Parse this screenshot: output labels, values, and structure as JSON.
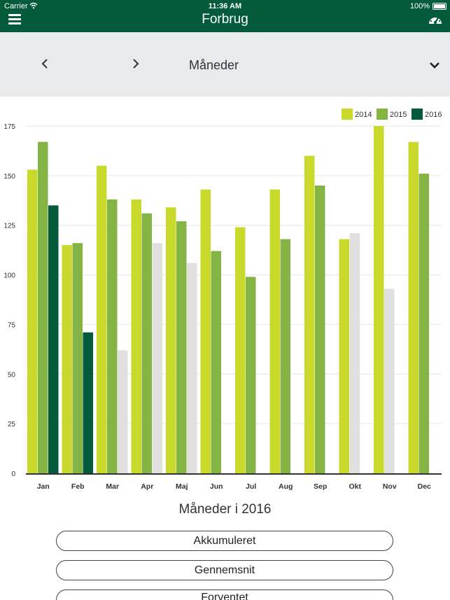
{
  "status_bar": {
    "carrier": "Carrier",
    "time": "11:36 AM",
    "battery": "100%"
  },
  "nav": {
    "title": "Forbrug",
    "menu_icon": "hamburger-menu-icon",
    "right_icon": "dashboard-gauge-icon"
  },
  "period": {
    "label": "Måneder",
    "prev_icon": "chevron-left-icon",
    "next_icon": "chevron-right-icon",
    "dropdown_icon": "chevron-down-icon"
  },
  "colors": {
    "brand": "#035b3c",
    "2014": "#c8d92b",
    "2015": "#84b544",
    "2016": "#035b3c",
    "expected": "#e2e0df"
  },
  "chart_data": {
    "type": "bar",
    "categories": [
      "Jan",
      "Feb",
      "Mar",
      "Apr",
      "Maj",
      "Jun",
      "Jul",
      "Aug",
      "Sep",
      "Okt",
      "Nov",
      "Dec"
    ],
    "series": [
      {
        "name": "2014",
        "color": "#c8d92b",
        "values": [
          153,
          115,
          155,
          138,
          134,
          143,
          124,
          143,
          160,
          118,
          175,
          167
        ]
      },
      {
        "name": "2015",
        "color": "#84b544",
        "values": [
          167,
          116,
          138,
          131,
          127,
          112,
          99,
          118,
          145,
          null,
          null,
          151
        ]
      },
      {
        "name": "2016",
        "color": "#035b3c",
        "values": [
          135,
          71,
          null,
          null,
          null,
          null,
          null,
          null,
          null,
          null,
          null,
          null
        ]
      },
      {
        "color": "#e2e0df",
        "values": [
          null,
          null,
          62,
          116,
          106,
          null,
          null,
          null,
          null,
          121,
          93,
          null
        ]
      }
    ],
    "legend": [
      "2014",
      "2015",
      "2016"
    ],
    "legend_position": "top-right",
    "ylim": [
      0,
      175
    ],
    "yticks": [
      0,
      25,
      50,
      75,
      100,
      125,
      150,
      175
    ],
    "grid": true
  },
  "subtitle": "Måneder i 2016",
  "buttons": {
    "accumulated": "Akkumuleret",
    "average": "Gennemsnit",
    "expected": "Forventet"
  }
}
